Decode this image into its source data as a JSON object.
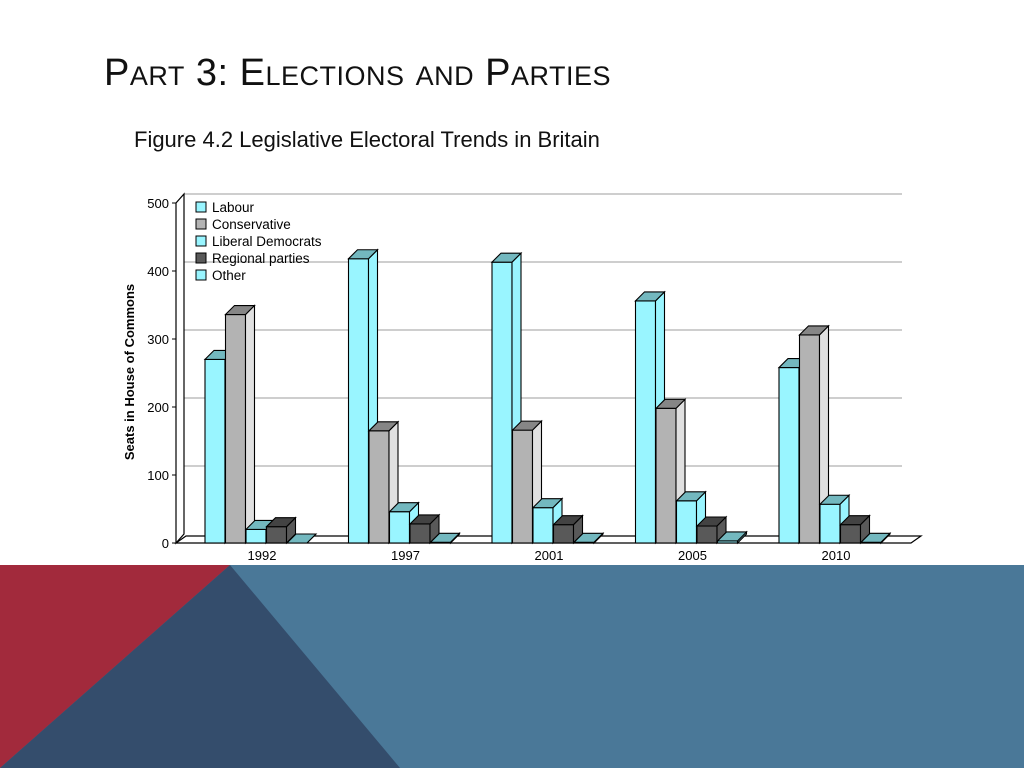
{
  "slide": {
    "title": "Part 3: Elections and Parties",
    "subtitle": "Figure 4.2 Legislative Electoral Trends in Britain"
  },
  "colors": {
    "labour": "#99f5ff",
    "conservative": "#b3b3b3",
    "liberal_democrats": "#99f5ff",
    "regional_parties": "#595959",
    "other": "#99f5ff",
    "footer_red": "#a22a3c",
    "footer_navy": "#344d6c",
    "footer_blue": "#4a7898"
  },
  "chart_data": {
    "type": "bar",
    "title": "",
    "xlabel": "",
    "ylabel": "Seats in House of Commons",
    "ylim": [
      0,
      500
    ],
    "yticks": [
      "0",
      "100",
      "200",
      "300",
      "400",
      "500"
    ],
    "grid": true,
    "legend_position": "top-left",
    "categories": [
      "1992",
      "1997",
      "2001",
      "2005",
      "2010"
    ],
    "series": [
      {
        "name": "Labour",
        "values": [
          270,
          418,
          413,
          356,
          258
        ]
      },
      {
        "name": "Conservative",
        "values": [
          336,
          165,
          166,
          198,
          306
        ]
      },
      {
        "name": "Liberal Democrats",
        "values": [
          20,
          46,
          52,
          62,
          57
        ]
      },
      {
        "name": "Regional parties",
        "values": [
          24,
          28,
          27,
          25,
          27
        ]
      },
      {
        "name": "Other",
        "values": [
          0,
          1,
          1,
          3,
          1
        ]
      }
    ]
  }
}
